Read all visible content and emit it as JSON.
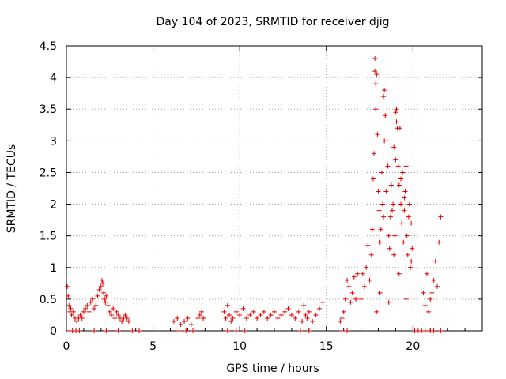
{
  "chart_data": {
    "type": "scatter",
    "title": "Day 104 of 2023, SRMTID for receiver djig",
    "xlabel": "GPS time / hours",
    "ylabel": "SRMTID / TECUs",
    "xlim": [
      0,
      24
    ],
    "ylim": [
      0,
      4.5
    ],
    "xticks": [
      0,
      5,
      10,
      15,
      20
    ],
    "yticks": [
      0,
      0.5,
      1,
      1.5,
      2,
      2.5,
      3,
      3.5,
      4,
      4.5
    ],
    "xtick_labels": [
      "0",
      "5",
      "10",
      "15",
      "20"
    ],
    "ytick_labels": [
      "0",
      "0.5",
      "1",
      "1.5",
      "2",
      "2.5",
      "3",
      "3.5",
      "4",
      "4.5"
    ],
    "grid": true,
    "marker": "+",
    "series": [
      {
        "name": "djig",
        "color": "#e00000",
        "x": [
          0.05,
          0.1,
          0.15,
          0.2,
          0.25,
          0.3,
          0.4,
          0.5,
          0.6,
          0.7,
          0.8,
          0.9,
          1.0,
          1.1,
          1.2,
          1.3,
          1.4,
          1.5,
          1.6,
          1.7,
          1.8,
          1.9,
          2.0,
          2.05,
          2.1,
          2.15,
          2.2,
          2.25,
          2.3,
          2.4,
          2.5,
          2.6,
          2.7,
          2.8,
          2.9,
          3.0,
          3.1,
          3.2,
          3.3,
          3.4,
          3.5,
          3.6,
          0.2,
          0.35,
          0.55,
          0.75,
          1.6,
          2.3,
          3.0,
          3.8,
          4.2,
          6.2,
          6.4,
          6.6,
          6.8,
          7.0,
          7.2,
          7.6,
          7.7,
          7.8,
          7.9,
          6.5,
          6.9,
          7.3,
          9.1,
          9.2,
          9.3,
          9.4,
          9.5,
          9.6,
          9.8,
          10.0,
          10.2,
          10.4,
          10.6,
          10.8,
          11.0,
          11.2,
          11.4,
          11.6,
          11.8,
          12.0,
          12.2,
          12.4,
          12.6,
          12.8,
          13.0,
          13.2,
          13.4,
          13.6,
          13.7,
          13.8,
          13.9,
          14.0,
          14.2,
          14.4,
          14.6,
          14.8,
          9.3,
          9.8,
          10.3,
          13.5,
          14.0,
          15.8,
          15.9,
          16.0,
          16.1,
          16.2,
          16.3,
          16.4,
          16.5,
          16.6,
          16.7,
          16.8,
          15.9,
          16.2,
          17.0,
          17.1,
          17.2,
          17.3,
          17.4,
          17.5,
          17.6,
          17.65,
          17.7,
          17.75,
          17.8,
          17.85,
          17.9,
          17.95,
          18.0,
          18.05,
          18.1,
          18.15,
          18.2,
          18.25,
          18.3,
          18.35,
          18.4,
          18.45,
          18.5,
          18.55,
          18.6,
          18.65,
          18.7,
          18.75,
          18.8,
          18.85,
          18.9,
          18.95,
          19.0,
          19.05,
          19.1,
          19.15,
          19.2,
          19.25,
          19.3,
          19.35,
          19.4,
          19.45,
          19.5,
          19.55,
          19.6,
          19.65,
          19.7,
          19.75,
          19.8,
          19.85,
          19.9,
          19.95,
          17.8,
          17.85,
          18.3,
          18.35,
          18.9,
          19.0,
          19.05,
          19.3,
          19.5,
          17.9,
          18.1,
          18.6,
          19.2,
          19.6,
          19.9,
          20.1,
          20.3,
          20.5,
          20.7,
          20.6,
          20.7,
          20.8,
          20.9,
          21.0,
          21.1,
          21.2,
          21.3,
          21.4,
          21.5,
          21.6,
          21.0,
          21.2,
          21.6
        ],
        "y": [
          0.7,
          0.55,
          0.4,
          0.3,
          0.35,
          0.25,
          0.3,
          0.2,
          0.15,
          0.2,
          0.25,
          0.2,
          0.3,
          0.35,
          0.4,
          0.3,
          0.45,
          0.5,
          0.35,
          0.4,
          0.55,
          0.65,
          0.7,
          0.8,
          0.75,
          0.6,
          0.5,
          0.45,
          0.55,
          0.4,
          0.3,
          0.25,
          0.35,
          0.2,
          0.3,
          0.25,
          0.2,
          0.15,
          0.2,
          0.25,
          0.2,
          0.15,
          0.0,
          0.0,
          0.0,
          0.0,
          0.0,
          0.0,
          0.0,
          0.0,
          0.0,
          0.15,
          0.2,
          0.1,
          0.15,
          0.2,
          0.1,
          0.2,
          0.25,
          0.3,
          0.2,
          0.0,
          0.0,
          0.0,
          0.3,
          0.2,
          0.4,
          0.25,
          0.15,
          0.2,
          0.3,
          0.25,
          0.35,
          0.2,
          0.25,
          0.3,
          0.2,
          0.25,
          0.3,
          0.2,
          0.25,
          0.3,
          0.2,
          0.25,
          0.3,
          0.35,
          0.25,
          0.2,
          0.3,
          0.15,
          0.4,
          0.25,
          0.2,
          0.3,
          0.15,
          0.25,
          0.35,
          0.45,
          0.0,
          0.0,
          0.0,
          0.0,
          0.0,
          0.15,
          0.2,
          0.3,
          0.5,
          0.8,
          0.7,
          0.45,
          0.6,
          0.85,
          0.5,
          0.9,
          0.0,
          0.0,
          0.5,
          0.9,
          0.7,
          1.0,
          1.35,
          0.8,
          1.2,
          1.6,
          2.4,
          2.8,
          4.3,
          3.5,
          4.05,
          3.1,
          2.2,
          1.9,
          1.4,
          1.6,
          2.5,
          2.0,
          1.8,
          3.8,
          3.4,
          2.2,
          3.0,
          2.6,
          1.5,
          1.3,
          1.8,
          2.3,
          1.9,
          2.0,
          1.2,
          1.5,
          2.7,
          3.5,
          3.2,
          2.6,
          2.3,
          3.2,
          2.0,
          1.7,
          2.5,
          1.4,
          1.9,
          2.2,
          2.6,
          1.5,
          1.2,
          1.8,
          2.0,
          1.0,
          1.7,
          1.3,
          4.1,
          3.9,
          3.7,
          3.0,
          2.9,
          3.45,
          3.3,
          2.4,
          2.1,
          0.3,
          0.6,
          0.45,
          0.9,
          0.5,
          1.1,
          0.0,
          0.0,
          0.0,
          0.0,
          0.6,
          0.4,
          0.9,
          0.3,
          0.5,
          0.6,
          0.8,
          1.1,
          0.7,
          1.4,
          1.8,
          0.0,
          0.0,
          0.0
        ]
      }
    ]
  }
}
